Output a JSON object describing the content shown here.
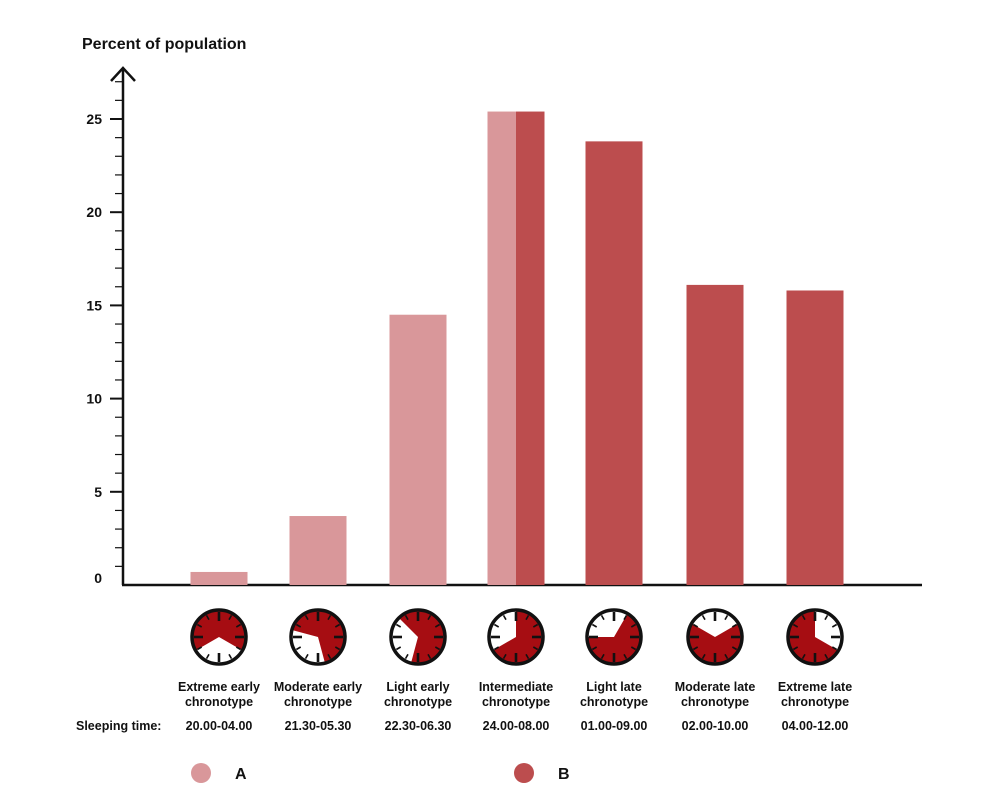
{
  "chart_data": {
    "type": "bar",
    "ylabel": "Percent of population",
    "ylim": [
      0,
      27
    ],
    "yticks": [
      0,
      5,
      10,
      15,
      20,
      25
    ],
    "y_minor_step": 1,
    "grid": false,
    "categories": [
      {
        "line1": "Extreme early",
        "line2": "chronotype",
        "sleep": "20.00-04.00",
        "start_hour": 20,
        "end_hour": 4
      },
      {
        "line1": "Moderate early",
        "line2": "chronotype",
        "sleep": "21.30-05.30",
        "start_hour": 21.5,
        "end_hour": 5.5
      },
      {
        "line1": "Light early",
        "line2": "chronotype",
        "sleep": "22.30-06.30",
        "start_hour": 22.5,
        "end_hour": 6.5
      },
      {
        "line1": "Intermediate",
        "line2": "chronotype",
        "sleep": "24.00-08.00",
        "start_hour": 0,
        "end_hour": 8
      },
      {
        "line1": "Light late",
        "line2": "chronotype",
        "sleep": "01.00-09.00",
        "start_hour": 1,
        "end_hour": 9
      },
      {
        "line1": "Moderate late",
        "line2": "chronotype",
        "sleep": "02.00-10.00",
        "start_hour": 2,
        "end_hour": 10
      },
      {
        "line1": "Extreme late",
        "line2": "chronotype",
        "sleep": "04.00-12.00",
        "start_hour": 4,
        "end_hour": 12
      }
    ],
    "sleeping_time_label": "Sleeping time:",
    "series": [
      {
        "name": "A",
        "color": "#d9979a",
        "values": [
          0.7,
          3.7,
          14.5,
          25.4,
          null,
          null,
          null
        ]
      },
      {
        "name": "B",
        "color": "#bc4d4e",
        "values": [
          null,
          null,
          null,
          25.4,
          23.8,
          16.1,
          15.8
        ]
      }
    ],
    "legend": {
      "placement": "bottom"
    },
    "clock_fill_color": "#a60d12"
  }
}
